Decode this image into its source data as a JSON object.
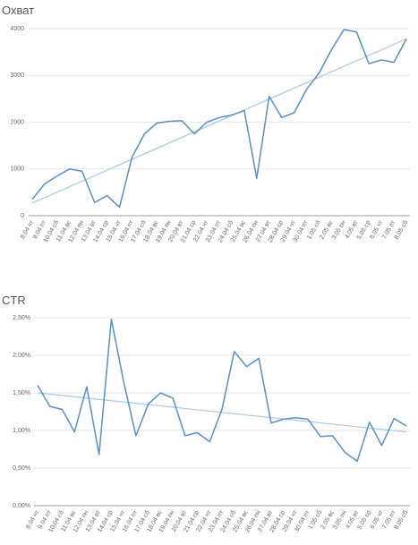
{
  "chart_data": [
    {
      "type": "line",
      "title": "Охват",
      "categories": [
        "8.04 чт",
        "9.04 пт",
        "10.04 сб",
        "11.04 вс",
        "12.04 пн",
        "13.04 вт",
        "14.04 ср",
        "15.04 чт",
        "16.04 пт",
        "17.04 сб",
        "18.04 вс",
        "19.04 пн",
        "20.04 вт",
        "21.04 ср",
        "22.04 чт",
        "23.04 пт",
        "24.04 сб",
        "25.04 вс",
        "26.04 пн",
        "27.04 вт",
        "28.04 ср",
        "29.04 чт",
        "30.04 пт",
        "1.05 сб",
        "2.05 вс",
        "3.05 пн",
        "4.05 вт",
        "5.05 ср",
        "6.05 чт",
        "7.05 пт",
        "8.05 сб"
      ],
      "series": [
        {
          "color": "#5b8fc2",
          "values": [
            350,
            680,
            850,
            1000,
            950,
            280,
            430,
            180,
            1250,
            1750,
            1980,
            2020,
            2030,
            1750,
            2000,
            2100,
            2150,
            2250,
            800,
            2550,
            2100,
            2200,
            2700,
            3050,
            3550,
            3980,
            3930,
            3250,
            3330,
            3280,
            3780
          ]
        }
      ],
      "trendline": [
        270,
        3780
      ],
      "trend_color": "#a9c8e6",
      "ylim": [
        0,
        4000
      ],
      "yticks": [
        0,
        1000,
        2000,
        3000,
        4000
      ],
      "grid": true
    },
    {
      "type": "line",
      "title": "CTR",
      "categories": [
        "8.04 чт",
        "9.04 пт",
        "10.04 сб",
        "11.04 вс",
        "12.04 пн",
        "13.04 вт",
        "14.04 ср",
        "15.04 чт",
        "16.04 пт",
        "17.04 сб",
        "18.04 вс",
        "19.04 пн",
        "20.04 вт",
        "21.04 ср",
        "22.04 чт",
        "23.04 пт",
        "24.04 сб",
        "25.04 вс",
        "26.04 пн",
        "27.04 вт",
        "28.04 ср",
        "29.04 чт",
        "30.04 пт",
        "1.05 сб",
        "2.05 вс",
        "3.05 пн",
        "4.05 вт",
        "5.05 ср",
        "6.05 чт",
        "7.05 пт",
        "8.05 сб"
      ],
      "series": [
        {
          "color": "#5b8fc2",
          "values": [
            1.6,
            1.32,
            1.28,
            0.98,
            1.58,
            0.68,
            2.48,
            1.65,
            0.93,
            1.35,
            1.5,
            1.43,
            0.93,
            0.97,
            0.85,
            1.28,
            2.05,
            1.85,
            1.96,
            1.1,
            1.15,
            1.17,
            1.15,
            0.92,
            0.93,
            0.71,
            0.59,
            1.11,
            0.8,
            1.16,
            1.06
          ]
        }
      ],
      "trendline": [
        1.5,
        0.98
      ],
      "trend_color": "#a9c8e6",
      "ylim": [
        0,
        2.5
      ],
      "yticks": [
        {
          "value": 0,
          "label": "0,00%"
        },
        {
          "value": 0.5,
          "label": "0,50%"
        },
        {
          "value": 1,
          "label": "1,00%"
        },
        {
          "value": 1.5,
          "label": "1,50%"
        },
        {
          "value": 2,
          "label": "2,00%"
        },
        {
          "value": 2.5,
          "label": "2,50%"
        }
      ],
      "grid": true
    }
  ]
}
